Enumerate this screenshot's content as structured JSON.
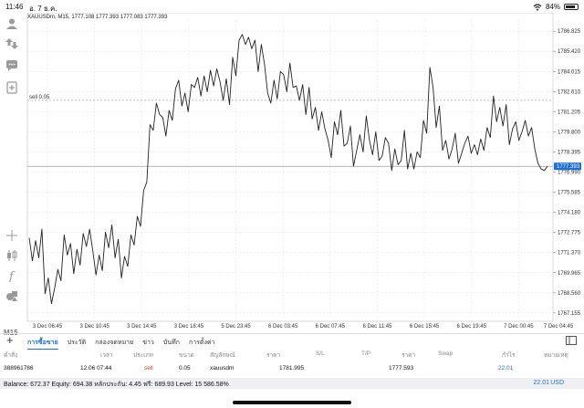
{
  "status_bar": {
    "time": "11:46",
    "date": "อ. 7 ธ.ค.",
    "battery": "84%",
    "battery_level": 0.84
  },
  "chart": {
    "header": "XAUUSDm, M15, 1777.108 1777.393 1777.083 1777.393",
    "timeframe": "M15",
    "sell_line_label": "sell 0.05",
    "current_price_label": "1777.393",
    "colors": {
      "line": "#222222",
      "grid": "#e6e6e6",
      "price_badge": "#1e6fd9",
      "sell_line": "#999999"
    }
  },
  "chart_data": {
    "type": "line",
    "series": [
      {
        "values": [
          1772.4,
          1770.8,
          1772.2,
          1771.0,
          1773.0,
          1768.5,
          1769.6,
          1767.8,
          1768.9,
          1770.2,
          1769.4,
          1772.6,
          1771.2,
          1772.0,
          1769.9,
          1771.6,
          1770.5,
          1772.7,
          1771.8,
          1773.0,
          1771.5,
          1769.8,
          1771.2,
          1770.1,
          1772.8,
          1771.7,
          1773.3,
          1771.0,
          1772.3,
          1769.6,
          1771.1,
          1770.4,
          1772.6,
          1771.9,
          1773.9,
          1773.2,
          1775.7,
          1776.3,
          1780.3,
          1779.9,
          1781.8,
          1781.0,
          1780.8,
          1779.5,
          1781.3,
          1780.6,
          1782.8,
          1783.4,
          1781.6,
          1782.5,
          1781.2,
          1783.1,
          1782.9,
          1783.6,
          1782.3,
          1783.7,
          1782.6,
          1784.1,
          1783.0,
          1784.2,
          1783.3,
          1782.0,
          1783.5,
          1781.7,
          1785.0,
          1783.7,
          1786.2,
          1786.6,
          1785.9,
          1786.4,
          1785.6,
          1786.2,
          1784.0,
          1785.9,
          1784.5,
          1782.5,
          1781.8,
          1783.4,
          1782.1,
          1784.0,
          1783.8,
          1782.6,
          1784.6,
          1782.9,
          1783.0,
          1782.0,
          1783.1,
          1781.0,
          1782.9,
          1780.7,
          1781.5,
          1779.9,
          1781.2,
          1780.0,
          1779.2,
          1778.0,
          1780.5,
          1779.6,
          1781.3,
          1778.8,
          1779.0,
          1780.2,
          1777.4,
          1778.5,
          1779.6,
          1778.4,
          1780.9,
          1779.2,
          1778.2,
          1779.8,
          1777.8,
          1778.1,
          1779.4,
          1779.0,
          1777.1,
          1778.6,
          1777.5,
          1777.8,
          1779.9,
          1777.2,
          1778.3,
          1777.2,
          1778.4,
          1778.0,
          1780.6,
          1779.7,
          1784.3,
          1782.9,
          1780.1,
          1781.6,
          1778.5,
          1779.2,
          1777.9,
          1778.6,
          1779.7,
          1777.6,
          1778.3,
          1779.0,
          1779.5,
          1778.3,
          1778.9,
          1778.2,
          1779.3,
          1778.5,
          1780.1,
          1779.4,
          1782.3,
          1780.5,
          1781.5,
          1780.2,
          1781.7,
          1778.9,
          1780.0,
          1780.5,
          1779.2,
          1779.8,
          1780.6,
          1779.5,
          1780.1,
          1778.6,
          1777.6,
          1777.2,
          1777.1,
          1777.4
        ]
      }
    ],
    "x_tick_labels": [
      "3 Dec 06:45",
      "3 Dec 10:45",
      "3 Dec 14:45",
      "3 Dec 18:45",
      "5 Dec 23:45",
      "6 Dec 03:45",
      "6 Dec 07:45",
      "6 Dec 11:45",
      "6 Dec 15:45",
      "6 Dec 19:45",
      "7 Dec 00:45",
      "7 Dec 04:45"
    ],
    "y_tick_labels": [
      "1786.825",
      "1785.420",
      "1784.015",
      "1782.610",
      "1781.205",
      "1779.800",
      "1778.395",
      "1776.990",
      "1775.585",
      "1774.180",
      "1772.775",
      "1771.370",
      "1769.965",
      "1768.560",
      "1767.155"
    ],
    "y_ticks": [
      1786.825,
      1785.42,
      1784.015,
      1782.61,
      1781.205,
      1779.8,
      1778.395,
      1776.99,
      1775.585,
      1774.18,
      1772.775,
      1771.37,
      1769.965,
      1768.56,
      1767.155
    ],
    "ylim": [
      1766.7,
      1787.6
    ],
    "sell_price": 1781.995,
    "current_price": 1777.393,
    "grid": true
  },
  "tabs": {
    "items": [
      "การซื้อขาย",
      "ประวัติ",
      "กล่องจดหมาย",
      "ข่าว",
      "บันทึก",
      "การตั้งค่า"
    ],
    "active": 0
  },
  "table": {
    "headers": [
      "คำสั่ง",
      "เวลา",
      "ประเภท",
      "ขนาด",
      "สัญลักษณ์",
      "ราคา",
      "S/L",
      "T/P",
      "ราคา",
      "Swap",
      "กำไร",
      "หมายเหตุ"
    ],
    "rows": [
      {
        "order": "388961786",
        "time": "12.06 07:44",
        "type": "sell",
        "size": "0.05",
        "symbol": "xauusdm",
        "price": "1781.995",
        "sl": "",
        "tp": "",
        "price_now": "1777.593",
        "swap": "",
        "profit": "22.01",
        "comment": ""
      }
    ]
  },
  "footer": {
    "balance_text": "Balance: 672.37 Equity: 694.38 หลักประกัน: 4.45 ฟรี: 689.93 Level: 15 586.58%",
    "total_profit": "22.01",
    "currency": "USD"
  }
}
